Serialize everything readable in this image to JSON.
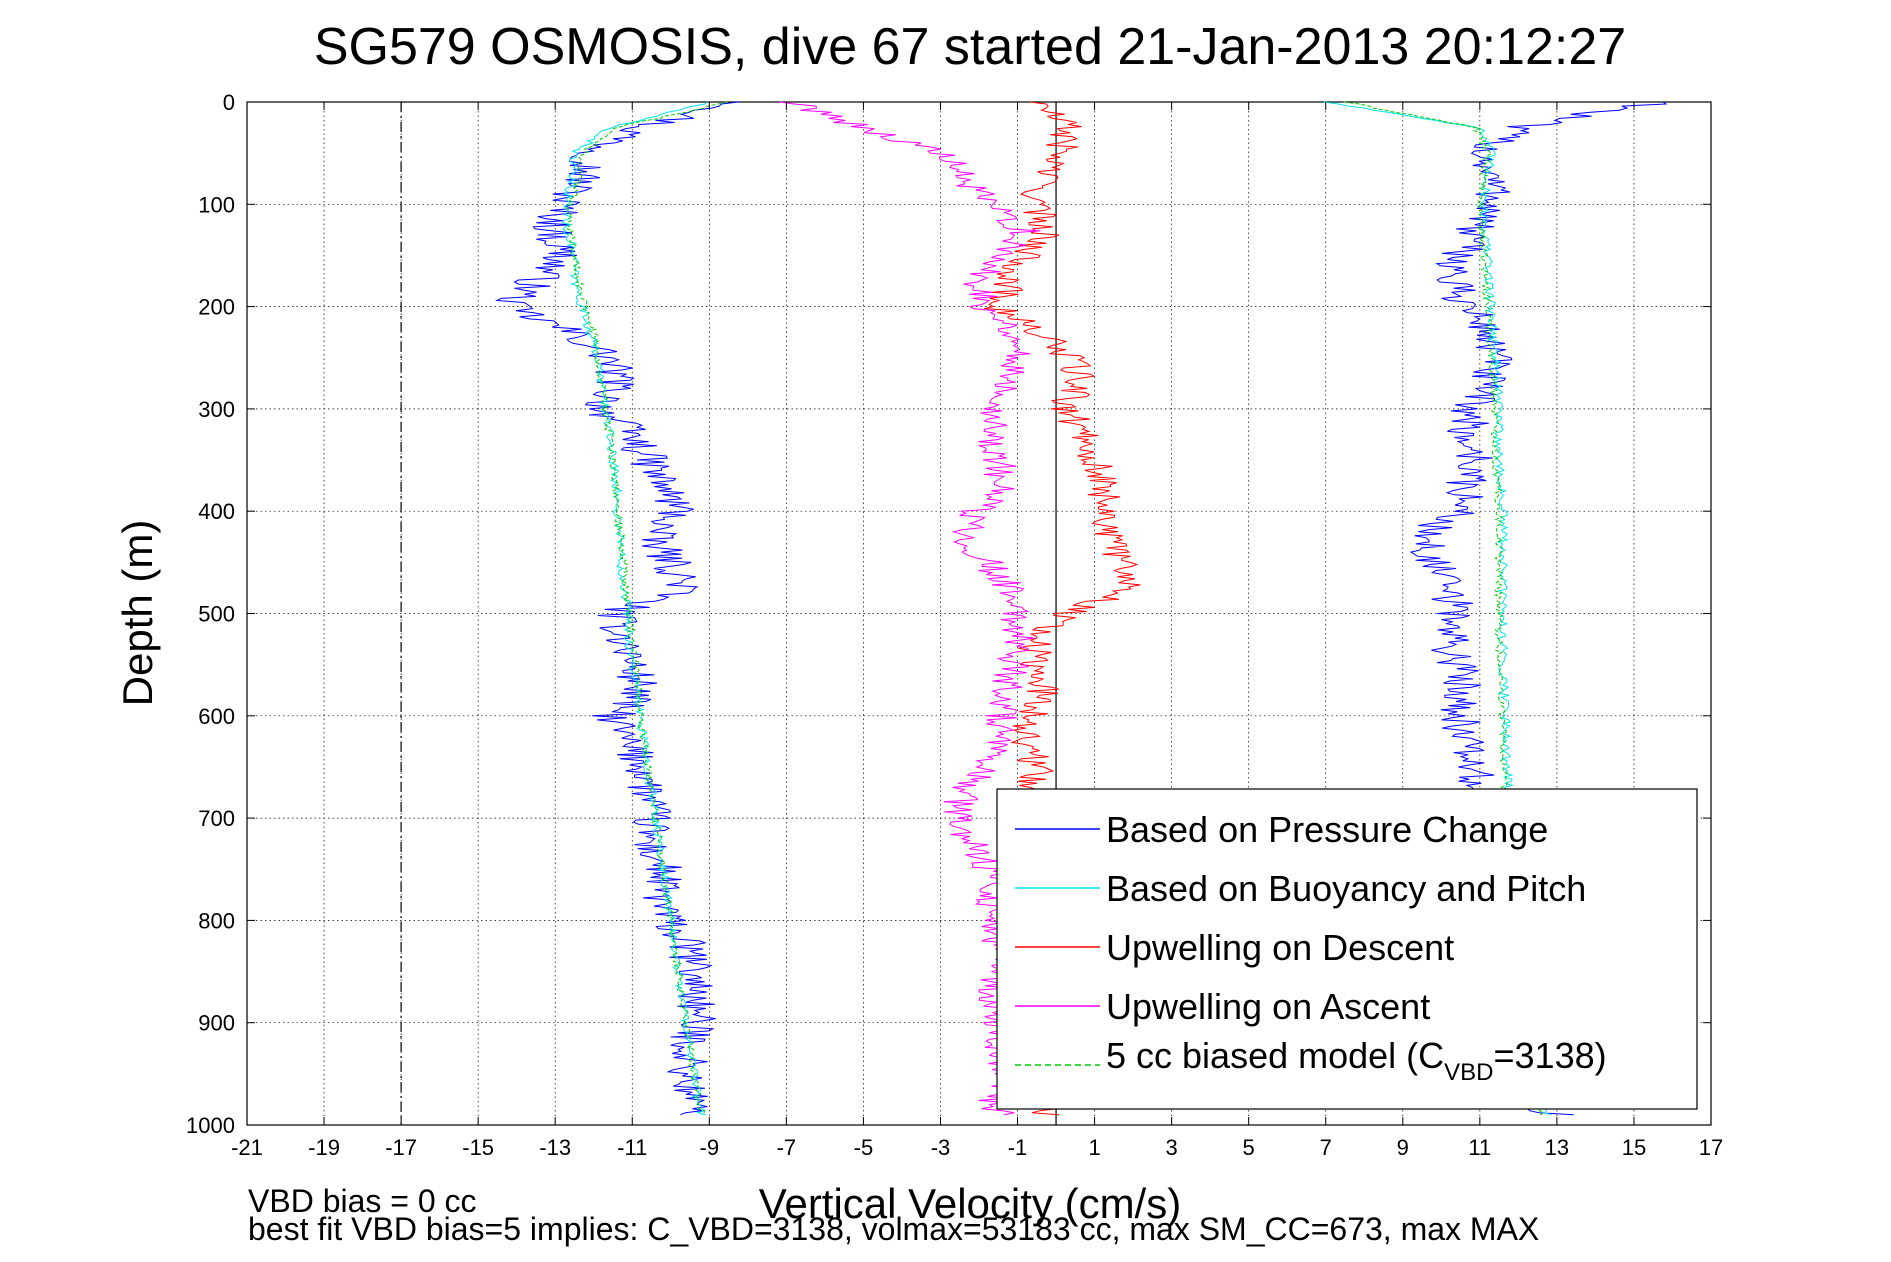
{
  "chart_data": {
    "type": "line",
    "title": "SG579 OSMOSIS, dive 67 started 21-Jan-2013 20:12:27",
    "xlabel": "Vertical Velocity (cm/s)",
    "ylabel": "Depth (m)",
    "xlim": [
      -21,
      17
    ],
    "ylim": [
      1000,
      0
    ],
    "y_reversed": true,
    "grid": true,
    "legend_position": "bottom-right",
    "x_ticks": [
      "-21",
      "-19",
      "-17",
      "-15",
      "-13",
      "-11",
      "-9",
      "-7",
      "-5",
      "-3",
      "-1",
      "1",
      "3",
      "5",
      "7",
      "9",
      "11",
      "13",
      "15",
      "17"
    ],
    "y_ticks": [
      "0",
      "100",
      "200",
      "300",
      "400",
      "500",
      "600",
      "700",
      "800",
      "900",
      "1000"
    ],
    "reference_lines": [
      {
        "x": -17,
        "style": "dash-dot",
        "color": "#000000"
      },
      {
        "x": 0,
        "style": "solid",
        "color": "#000000"
      }
    ],
    "series": [
      {
        "name": "Based on Pressure Change",
        "color": "#0000ff",
        "descent": {
          "depth": [
            0,
            25,
            50,
            75,
            100,
            125,
            150,
            175,
            200,
            225,
            250,
            275,
            300,
            325,
            350,
            375,
            400,
            425,
            450,
            475,
            500,
            525,
            550,
            575,
            600,
            625,
            650,
            675,
            700,
            725,
            750,
            775,
            800,
            825,
            850,
            875,
            900,
            925,
            950,
            975,
            990
          ],
          "vel": [
            -8,
            -10.8,
            -12,
            -12.3,
            -12.8,
            -13.1,
            -12.8,
            -13.5,
            -14.2,
            -12.6,
            -11.6,
            -11.4,
            -11.8,
            -11,
            -10.6,
            -10.2,
            -9.8,
            -10.5,
            -10,
            -9.6,
            -11.5,
            -11.2,
            -11,
            -10.8,
            -11.5,
            -11.2,
            -10.7,
            -10.6,
            -10.5,
            -10.6,
            -10.2,
            -10.3,
            -10.1,
            -9.6,
            -9.4,
            -9.3,
            -9.4,
            -9.5,
            -9.6,
            -9.5,
            -9.3
          ]
        },
        "ascent": {
          "depth": [
            990,
            975,
            950,
            925,
            900,
            875,
            850,
            825,
            800,
            775,
            750,
            725,
            700,
            675,
            650,
            625,
            600,
            575,
            550,
            525,
            500,
            475,
            450,
            425,
            400,
            375,
            350,
            325,
            300,
            275,
            250,
            225,
            200,
            175,
            150,
            125,
            100,
            75,
            50,
            25,
            10,
            0
          ],
          "vel": [
            13,
            12.2,
            11.6,
            11.2,
            11.1,
            10.8,
            10.9,
            10.6,
            10.6,
            10.5,
            10.9,
            10.8,
            10.9,
            10.9,
            10.8,
            10.6,
            10.5,
            10.6,
            10.4,
            10.2,
            10.4,
            10.1,
            9.8,
            9.5,
            10.5,
            10.6,
            10.9,
            10.6,
            10.8,
            11.1,
            11.4,
            11.2,
            10.7,
            10.2,
            10.5,
            10.8,
            11.4,
            11.3,
            11.1,
            11.9,
            14,
            16
          ]
        }
      },
      {
        "name": "Based on Buoyancy and Pitch",
        "color": "#00e5ee",
        "descent": {
          "depth": [
            0,
            25,
            50,
            75,
            100,
            125,
            150,
            175,
            200,
            225,
            250,
            275,
            300,
            325,
            350,
            375,
            400,
            425,
            450,
            475,
            500,
            525,
            550,
            575,
            600,
            625,
            650,
            675,
            700,
            725,
            750,
            775,
            800,
            825,
            850,
            875,
            900,
            925,
            950,
            975,
            990
          ],
          "vel": [
            -9,
            -11.6,
            -12.5,
            -12.6,
            -12.7,
            -12.7,
            -12.5,
            -12.5,
            -12.3,
            -12.1,
            -11.9,
            -11.8,
            -11.7,
            -11.6,
            -11.5,
            -11.4,
            -11.4,
            -11.3,
            -11.3,
            -11.2,
            -11.1,
            -11.1,
            -11,
            -10.9,
            -10.8,
            -10.7,
            -10.6,
            -10.5,
            -10.4,
            -10.3,
            -10.2,
            -10.1,
            -10,
            -9.9,
            -9.8,
            -9.7,
            -9.6,
            -9.5,
            -9.4,
            -9.3,
            -9.2
          ]
        },
        "ascent": {
          "depth": [
            990,
            950,
            900,
            850,
            800,
            750,
            700,
            650,
            600,
            550,
            500,
            450,
            400,
            350,
            300,
            250,
            200,
            150,
            100,
            75,
            50,
            25,
            0
          ],
          "vel": [
            12.8,
            12.4,
            12.2,
            12,
            11.9,
            11.8,
            11.8,
            11.7,
            11.7,
            11.6,
            11.6,
            11.6,
            11.6,
            11.5,
            11.5,
            11.4,
            11.3,
            11.2,
            11.1,
            11.2,
            11.3,
            11,
            7
          ]
        }
      },
      {
        "name": "Upwelling on Descent",
        "color": "#ff0000",
        "depth": [
          0,
          25,
          50,
          75,
          100,
          125,
          150,
          175,
          200,
          225,
          250,
          275,
          300,
          325,
          350,
          375,
          400,
          425,
          450,
          475,
          500,
          525,
          550,
          575,
          600,
          625,
          650,
          675,
          700,
          725,
          750,
          775,
          800,
          825,
          850,
          875,
          900,
          925,
          950,
          975,
          990
        ],
        "vel": [
          -0.5,
          0.3,
          0.1,
          -0.3,
          -0.6,
          -0.2,
          -0.8,
          -1.2,
          -1.5,
          -0.5,
          0.4,
          0.6,
          0.2,
          0.8,
          1,
          1.2,
          1.4,
          1.3,
          1.8,
          2,
          0.3,
          -0.5,
          -0.6,
          -0.3,
          -0.6,
          -0.8,
          -0.5,
          -0.6,
          -0.4,
          -0.6,
          -0.4,
          -0.5,
          -0.6,
          -0.5,
          -0.4,
          -0.5,
          -0.4,
          -0.5,
          -0.3,
          -0.4,
          -0.2
        ]
      },
      {
        "name": "Upwelling on Ascent",
        "color": "#ff00ff",
        "depth": [
          990,
          975,
          950,
          925,
          900,
          875,
          850,
          825,
          800,
          775,
          750,
          725,
          700,
          675,
          650,
          625,
          600,
          575,
          550,
          525,
          500,
          475,
          450,
          425,
          400,
          375,
          350,
          325,
          300,
          275,
          250,
          225,
          200,
          175,
          150,
          125,
          100,
          75,
          50,
          25,
          10,
          0
        ],
        "vel": [
          -1.5,
          -1.6,
          -1.5,
          -1.4,
          -1.6,
          -1.7,
          -1.5,
          -1.6,
          -1.6,
          -1.7,
          -1.7,
          -2.2,
          -2.6,
          -2.4,
          -1.9,
          -1.6,
          -1.4,
          -1.3,
          -1.1,
          -0.9,
          -1.1,
          -1.2,
          -1.8,
          -2.3,
          -2.1,
          -1.4,
          -1.5,
          -1.7,
          -1.5,
          -1.2,
          -1.0,
          -1.1,
          -1.8,
          -2.0,
          -1.5,
          -0.8,
          -1.8,
          -2.4,
          -3.0,
          -5.0,
          -6.0,
          -7.0
        ]
      },
      {
        "name": "5 cc biased model",
        "name_subscript": "VBD",
        "name_value": "3138",
        "color": "#00cc00",
        "dashed": true,
        "descent": {
          "depth": [
            0,
            25,
            50,
            75,
            100,
            125,
            150,
            175,
            200,
            225,
            250,
            275,
            300,
            325,
            350,
            375,
            400,
            425,
            450,
            475,
            500,
            525,
            550,
            575,
            600,
            625,
            650,
            675,
            700,
            725,
            750,
            775,
            800,
            825,
            850,
            875,
            900,
            925,
            950,
            975,
            990
          ],
          "vel": [
            -8.5,
            -11.4,
            -12.3,
            -12.4,
            -12.6,
            -12.6,
            -12.5,
            -12.4,
            -12.2,
            -12,
            -11.9,
            -11.8,
            -11.7,
            -11.6,
            -11.5,
            -11.4,
            -11.4,
            -11.3,
            -11.2,
            -11.2,
            -11.1,
            -11,
            -10.9,
            -10.8,
            -10.8,
            -10.7,
            -10.6,
            -10.5,
            -10.4,
            -10.3,
            -10.2,
            -10.1,
            -10,
            -9.9,
            -9.8,
            -9.7,
            -9.6,
            -9.5,
            -9.4,
            -9.3,
            -9.2
          ]
        },
        "ascent": {
          "depth": [
            990,
            950,
            900,
            850,
            800,
            750,
            700,
            650,
            600,
            550,
            500,
            450,
            400,
            350,
            300,
            250,
            200,
            150,
            100,
            75,
            50,
            25,
            0
          ],
          "vel": [
            12.6,
            12.3,
            12.1,
            11.9,
            11.8,
            11.7,
            11.7,
            11.6,
            11.6,
            11.5,
            11.5,
            11.5,
            11.5,
            11.4,
            11.4,
            11.3,
            11.2,
            11.1,
            11.0,
            11.1,
            11.2,
            10.9,
            7.5
          ]
        }
      }
    ],
    "annotations": {
      "footnote_line1": "VBD bias = 0 cc",
      "footnote_line2": "best fit VBD bias=5 implies: C_VBD=3138, volmax=53183 cc, max SM_CC=673, max MAX"
    }
  },
  "legend_labels": {
    "item1": "Based on Pressure Change",
    "item2": "Based on Buoyancy and Pitch",
    "item3": "Upwelling on Descent",
    "item4": "Upwelling on Ascent",
    "item5_prefix": "5 cc biased model (C",
    "item5_sub": "VBD",
    "item5_suffix": "=3138)"
  }
}
